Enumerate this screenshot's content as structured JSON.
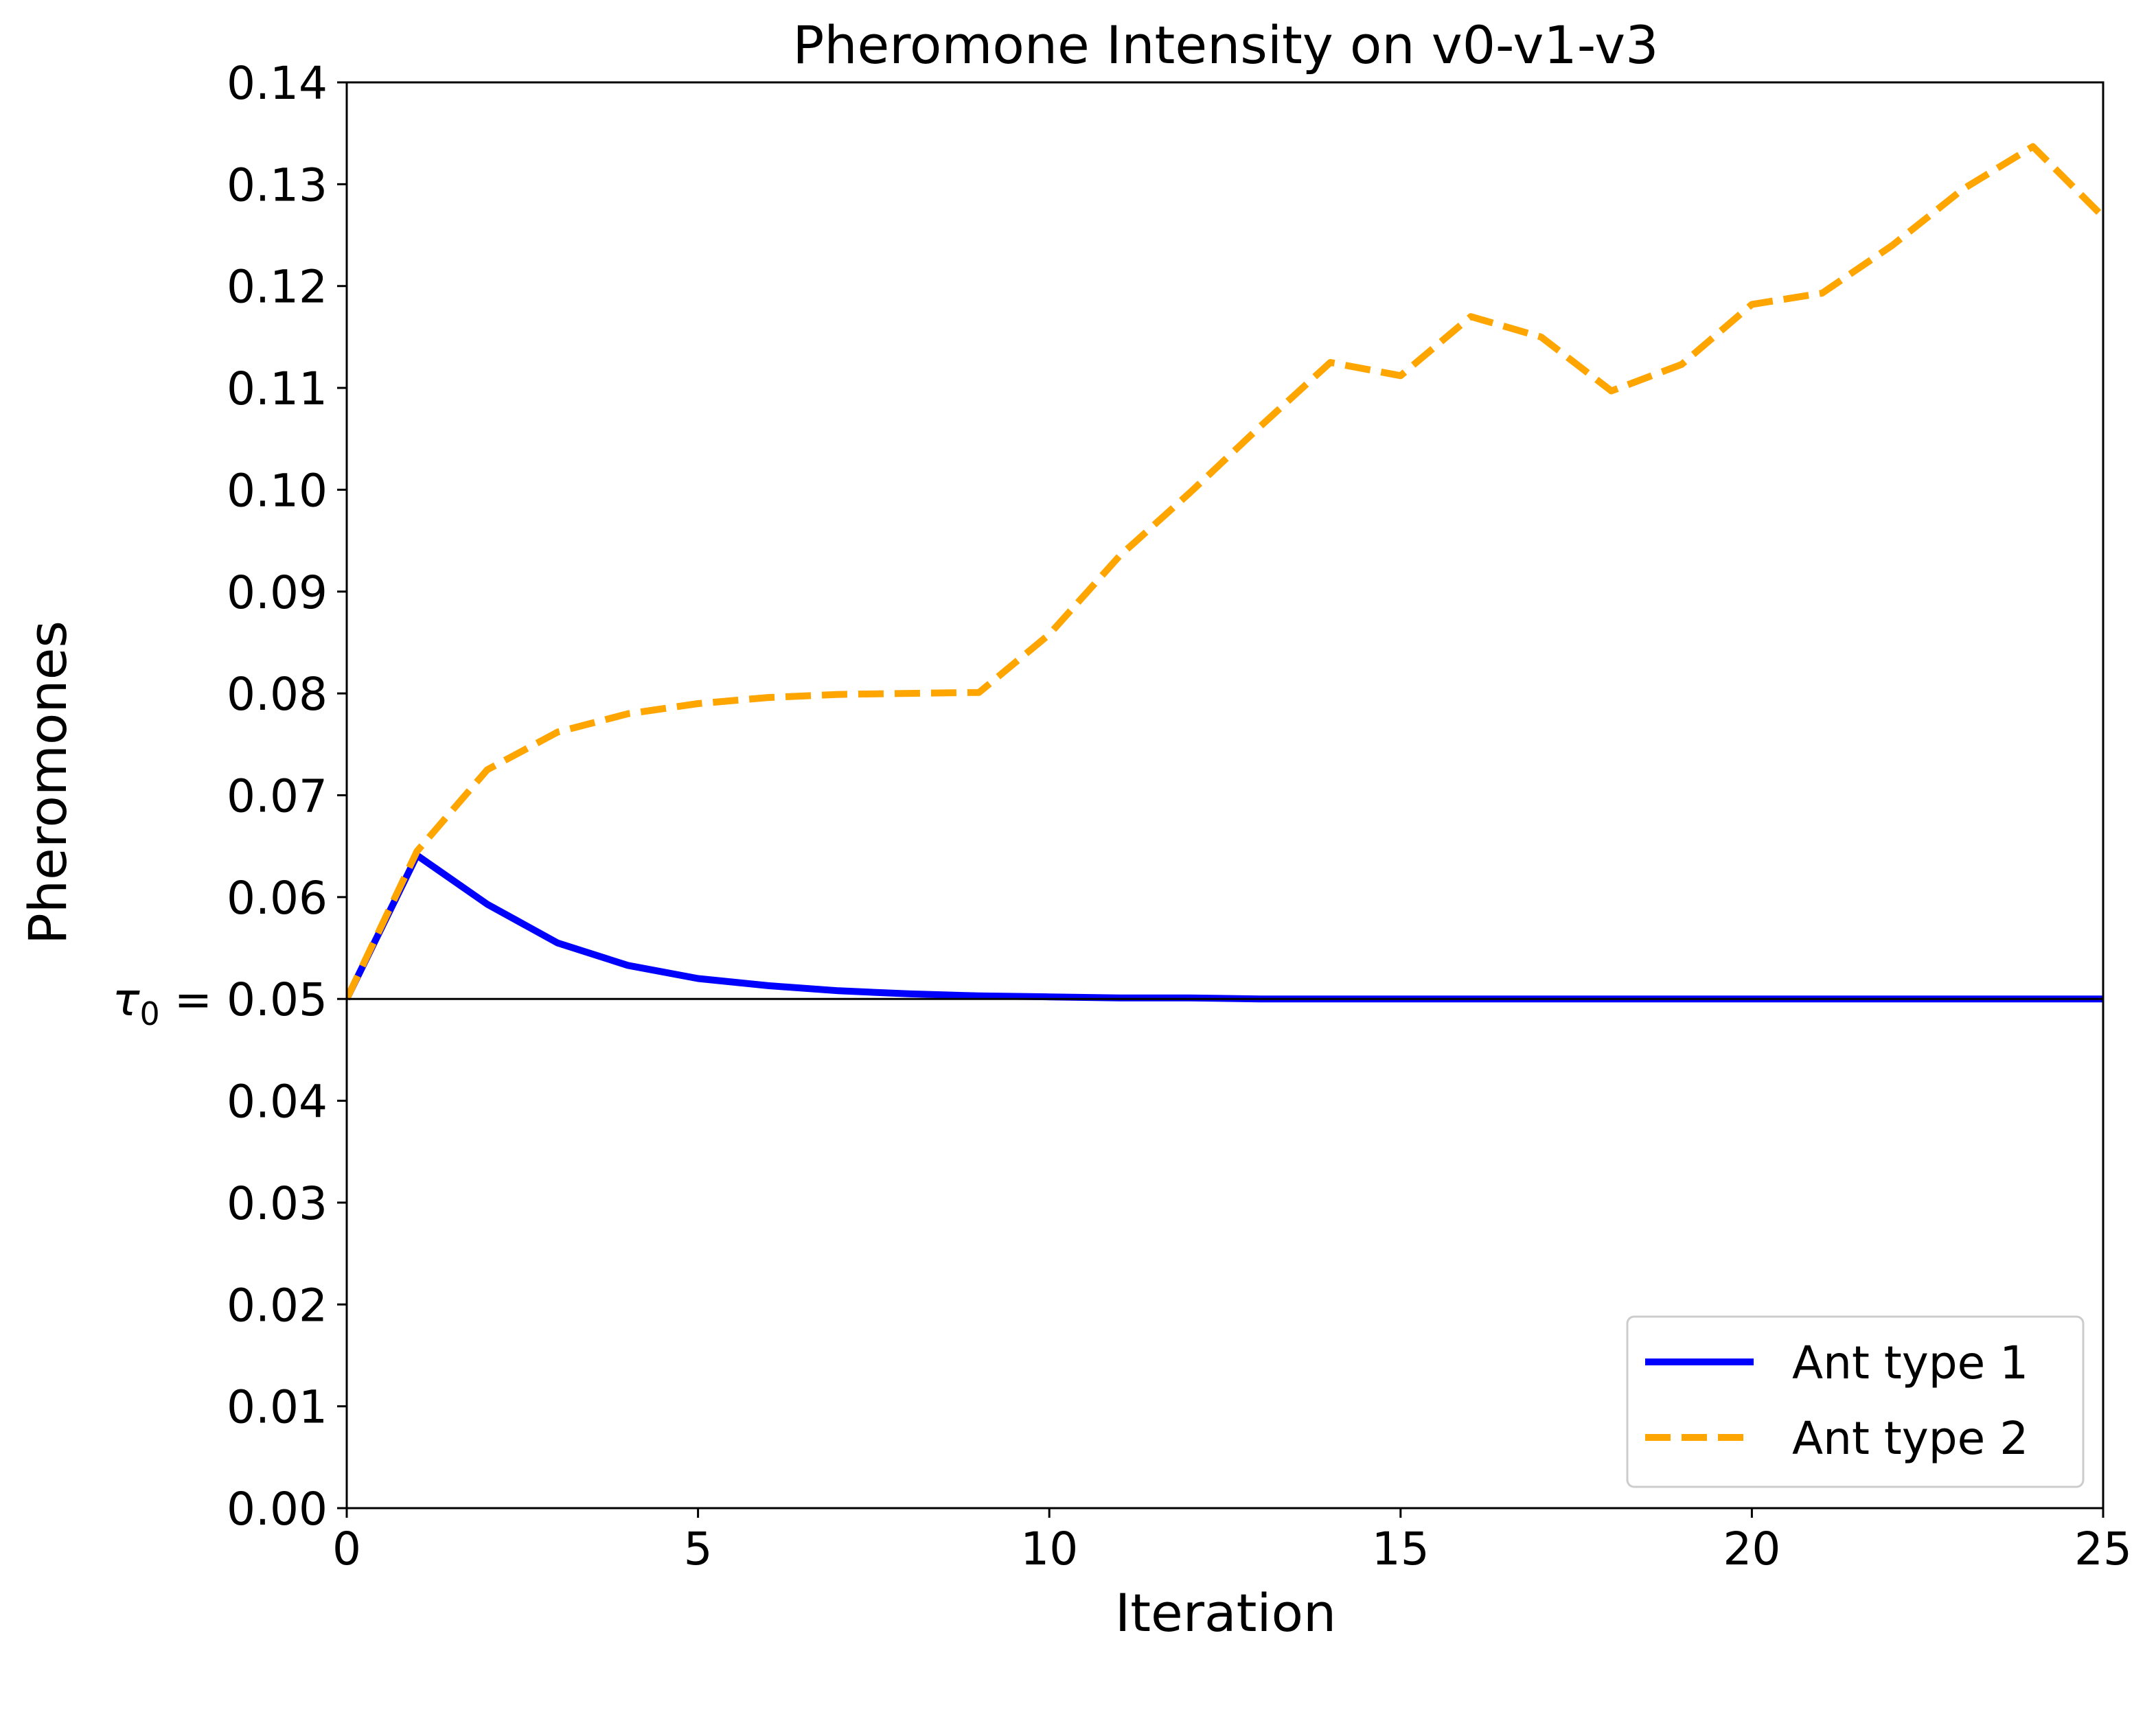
{
  "chart_data": {
    "type": "line",
    "title": "Pheromone Intensity on v0-v1-v3",
    "xlabel": "Iteration",
    "ylabel": "Pheromones",
    "xlim": [
      0,
      25
    ],
    "ylim": [
      0,
      0.14
    ],
    "x_ticks": [
      0,
      5,
      10,
      15,
      20,
      25
    ],
    "x_tick_labels": [
      "0",
      "5",
      "10",
      "15",
      "20",
      "25"
    ],
    "y_ticks": [
      0,
      0.01,
      0.02,
      0.03,
      0.04,
      0.06,
      0.07,
      0.08,
      0.09,
      0.1,
      0.11,
      0.12,
      0.13,
      0.14
    ],
    "y_tick_labels": [
      "0.00",
      "0.01",
      "0.02",
      "0.03",
      "0.04",
      "0.06",
      "0.07",
      "0.08",
      "0.09",
      "0.10",
      "0.11",
      "0.12",
      "0.13",
      "0.14"
    ],
    "reference_line": {
      "y": 0.05,
      "label_symbol": "τ",
      "label_subscript": "0",
      "label_value": " = 0.05",
      "color": "#000000"
    },
    "grid": false,
    "legend": {
      "position": "lower-right"
    },
    "x": [
      0,
      1,
      2,
      3,
      4,
      5,
      6,
      7,
      8,
      9,
      10,
      11,
      12,
      13,
      14,
      15,
      16,
      17,
      18,
      19,
      20,
      21,
      22,
      23,
      24,
      25
    ],
    "series": [
      {
        "name": "Ant type 1",
        "color": "#0000ff",
        "style": "solid",
        "values": [
          0.05,
          0.0641,
          0.0593,
          0.0555,
          0.0533,
          0.052,
          0.0513,
          0.0508,
          0.0505,
          0.0503,
          0.0502,
          0.0501,
          0.0501,
          0.05,
          0.05,
          0.05,
          0.05,
          0.05,
          0.05,
          0.05,
          0.05,
          0.05,
          0.05,
          0.05,
          0.05,
          0.05
        ]
      },
      {
        "name": "Ant type 2",
        "color": "#ffa500",
        "style": "dashed",
        "values": [
          0.05,
          0.0645,
          0.0725,
          0.0762,
          0.078,
          0.079,
          0.0796,
          0.0799,
          0.08,
          0.0801,
          0.0858,
          0.0935,
          0.0997,
          0.1062,
          0.1125,
          0.1112,
          0.117,
          0.115,
          0.1097,
          0.1123,
          0.1182,
          0.1193,
          0.124,
          0.1295,
          0.1337,
          0.1268
        ]
      }
    ]
  }
}
